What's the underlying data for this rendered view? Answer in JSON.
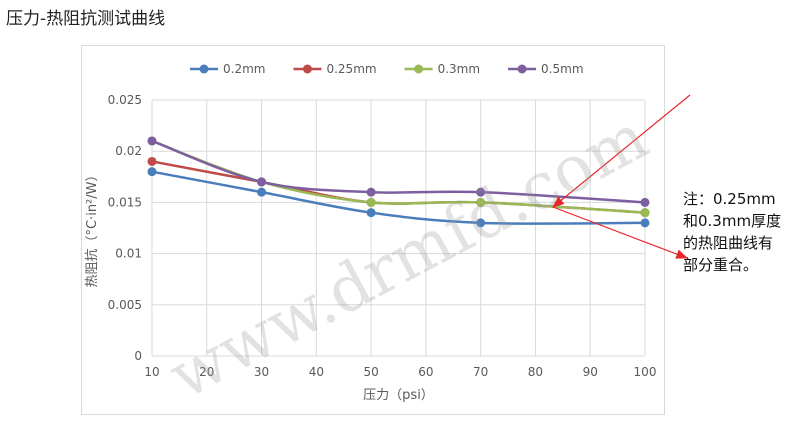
{
  "title": "压力-热阻抗测试曲线",
  "watermark": "www.drmfd.com",
  "note": {
    "lines": [
      "注：0.25mm",
      "和0.3mm厚度",
      "的热阻曲线有",
      "部分重合。"
    ],
    "arrow_color": "#e8262b"
  },
  "chart_data": {
    "type": "line",
    "title": "",
    "xlabel": "压力（psi）",
    "ylabel": "热阻抗（°C·in²/W）",
    "x_ticks": [
      10,
      20,
      30,
      40,
      50,
      60,
      70,
      80,
      90,
      100
    ],
    "y_ticks": [
      0,
      0.005,
      0.01,
      0.015,
      0.02,
      0.025
    ],
    "y_tick_labels": [
      "0",
      "0.005",
      "0.01",
      "0.015",
      "0.02",
      "0.025"
    ],
    "xlim": [
      10,
      100
    ],
    "ylim": [
      0,
      0.025
    ],
    "grid": true,
    "legend_position": "top",
    "x": [
      10,
      30,
      50,
      70,
      100
    ],
    "series": [
      {
        "name": "0.2mm",
        "color": "#4a7ebb",
        "values": [
          0.018,
          0.016,
          0.014,
          0.013,
          0.013
        ]
      },
      {
        "name": "0.25mm",
        "color": "#be4b48",
        "values": [
          0.019,
          0.017,
          0.015,
          0.015,
          0.014
        ]
      },
      {
        "name": "0.3mm",
        "color": "#98b954",
        "values": [
          0.021,
          0.017,
          0.015,
          0.015,
          0.014
        ]
      },
      {
        "name": "0.5mm",
        "color": "#7d5fa0",
        "values": [
          0.021,
          0.017,
          0.016,
          0.016,
          0.015
        ]
      }
    ]
  }
}
